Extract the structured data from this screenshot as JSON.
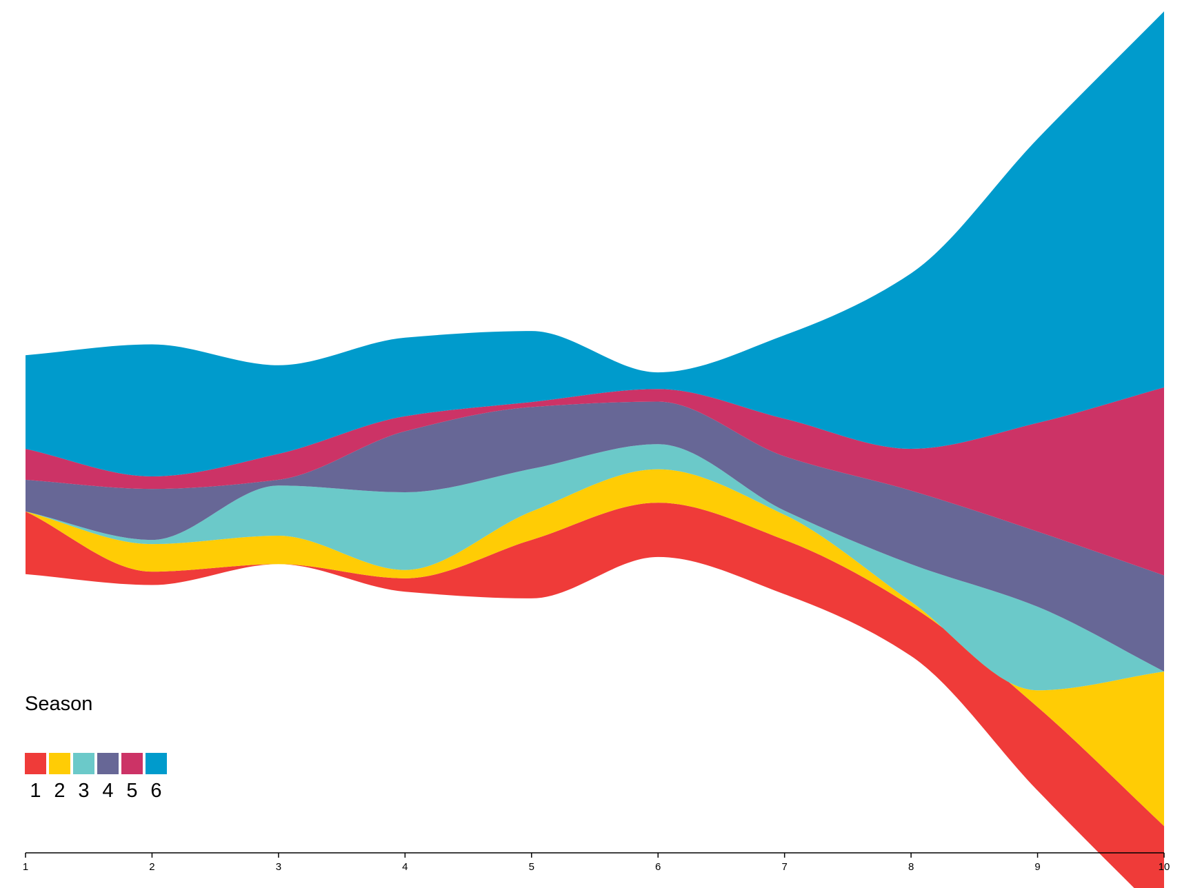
{
  "chart_data": {
    "type": "area",
    "x": [
      1,
      2,
      3,
      4,
      5,
      6,
      7,
      8,
      9,
      10
    ],
    "xlim": [
      1,
      10
    ],
    "xticks": [
      "1",
      "2",
      "3",
      "4",
      "5",
      "6",
      "7",
      "8",
      "9",
      "10"
    ],
    "legend": {
      "title": "Season",
      "placement": "bottom-left"
    },
    "series": [
      {
        "name": "1",
        "color": "#EF3B39",
        "values": [
          7.5,
          1.6,
          0.0,
          1.6,
          7.0,
          6.5,
          6.5,
          6.0,
          10.0,
          11.0
        ]
      },
      {
        "name": "2",
        "color": "#FFCC05",
        "values": [
          0.0,
          3.3,
          3.4,
          1.0,
          3.4,
          4.0,
          3.0,
          0.5,
          2.0,
          18.5
        ]
      },
      {
        "name": "3",
        "color": "#6BC9C9",
        "values": [
          0.0,
          0.5,
          6.0,
          9.3,
          5.1,
          3.0,
          0.5,
          4.5,
          10.0,
          0.0
        ]
      },
      {
        "name": "4",
        "color": "#676796",
        "values": [
          3.8,
          6.1,
          0.7,
          7.3,
          7.4,
          5.1,
          6.5,
          8.8,
          9.0,
          11.5
        ]
      },
      {
        "name": "5",
        "color": "#CC3366",
        "values": [
          3.7,
          1.5,
          3.1,
          1.8,
          0.6,
          1.5,
          4.5,
          5.0,
          13.0,
          22.5
        ]
      },
      {
        "name": "6",
        "color": "#009BCC",
        "values": [
          11.2,
          15.8,
          10.6,
          9.4,
          8.5,
          2.0,
          10.0,
          21.0,
          34.0,
          45.0
        ]
      }
    ]
  }
}
